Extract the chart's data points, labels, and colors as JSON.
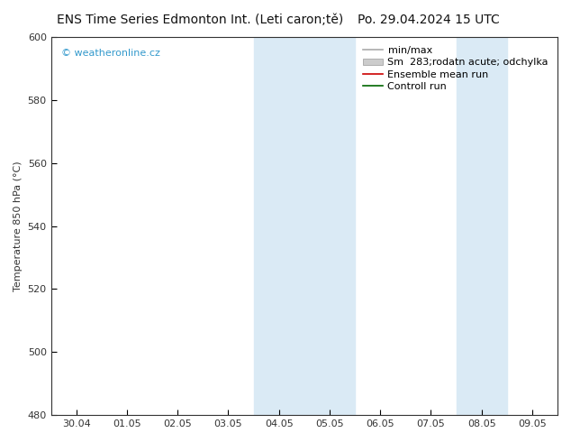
{
  "title_left": "ENS Time Series Edmonton Int. (Leti caron;tě)",
  "title_right": "Po. 29.04.2024 15 UTC",
  "ylabel": "Temperature 850 hPa (°C)",
  "ylim": [
    480,
    600
  ],
  "yticks": [
    480,
    500,
    520,
    540,
    560,
    580,
    600
  ],
  "xtick_labels": [
    "30.04",
    "01.05",
    "02.05",
    "03.05",
    "04.05",
    "05.05",
    "06.05",
    "07.05",
    "08.05",
    "09.05"
  ],
  "weekend_bands": [
    {
      "xstart": 4,
      "xend": 6
    },
    {
      "xstart": 8,
      "xend": 9
    }
  ],
  "band_color": "#daeaf5",
  "background_color": "#ffffff",
  "tick_color": "#333333",
  "spine_color": "#333333",
  "watermark": "© weatheronline.cz",
  "watermark_color": "#3399cc",
  "legend_entries": [
    {
      "label": "min/max",
      "color": "#aaaaaa",
      "lw": 1.2,
      "type": "line"
    },
    {
      "label": "Sm  283;rodatn acute; odchylka",
      "color": "#cccccc",
      "lw": 6,
      "type": "patch"
    },
    {
      "label": "Ensemble mean run",
      "color": "#cc0000",
      "lw": 1.2,
      "type": "line"
    },
    {
      "label": "Controll run",
      "color": "#006600",
      "lw": 1.2,
      "type": "line"
    }
  ],
  "title_fontsize": 10,
  "tick_fontsize": 8,
  "ylabel_fontsize": 8,
  "legend_fontsize": 8,
  "watermark_fontsize": 8
}
